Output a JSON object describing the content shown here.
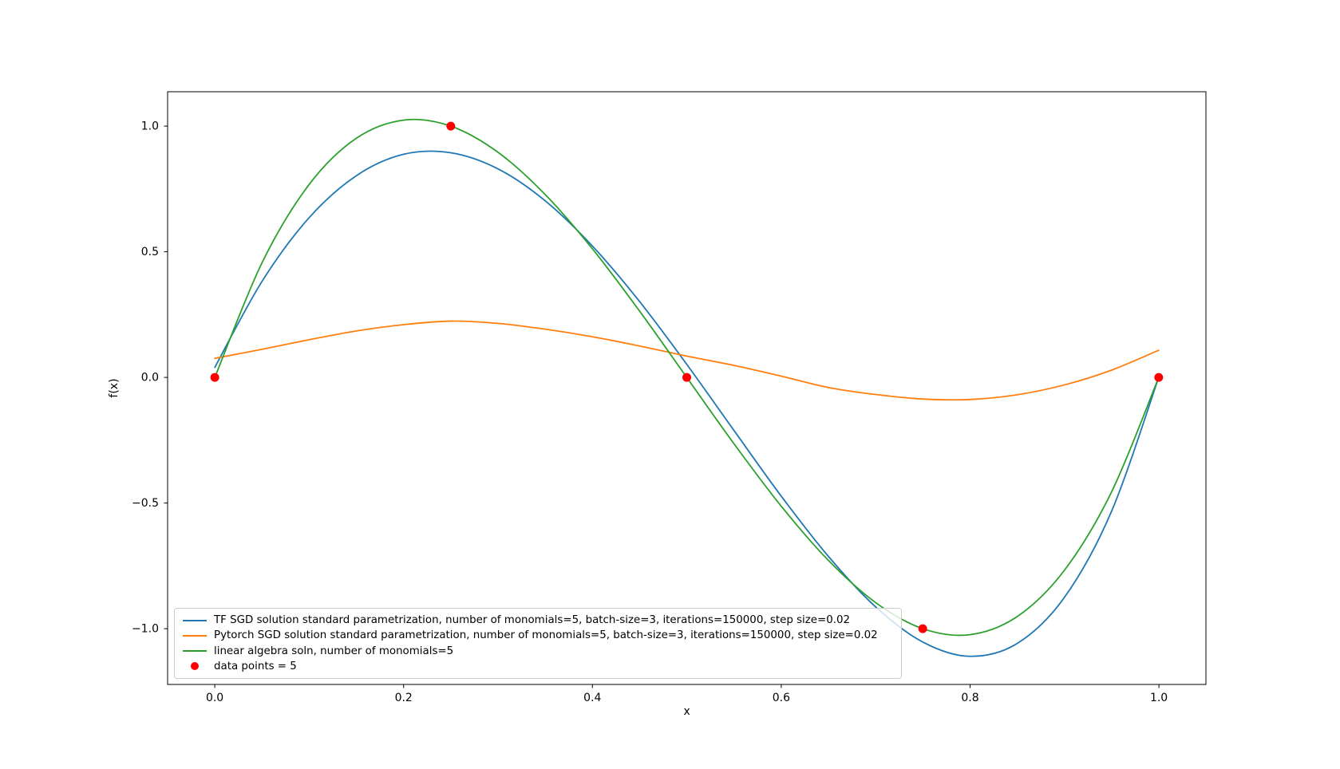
{
  "chart_data": {
    "type": "line",
    "title": "",
    "xlabel": "x",
    "ylabel": "f(x)",
    "xlim": [
      -0.05,
      1.05
    ],
    "ylim": [
      -1.222,
      1.137
    ],
    "grid": false,
    "legend_position": "lower left",
    "xticks": {
      "values": [
        0.0,
        0.2,
        0.4,
        0.6,
        0.8,
        1.0
      ],
      "labels": [
        "0.0",
        "0.2",
        "0.4",
        "0.6",
        "0.8",
        "1.0"
      ]
    },
    "yticks": {
      "values": [
        1.0,
        0.5,
        0.0,
        -0.5,
        -1.0
      ],
      "labels": [
        "1.0",
        "0.5",
        "0.0",
        "−0.5",
        "−1.0"
      ]
    },
    "series": [
      {
        "id": "tf-sgd",
        "name": "TF SGD solution standard parametrization, number of monomials=5, batch-size=3, iterations=150000, step size=0.02",
        "color": "#1f77b4",
        "type": "line",
        "x": [
          0,
          0.05,
          0.1,
          0.15,
          0.2,
          0.25,
          0.3,
          0.35,
          0.4,
          0.45,
          0.5,
          0.55,
          0.6,
          0.65,
          0.7,
          0.75,
          0.8,
          0.85,
          0.9,
          0.95,
          1.0
        ],
        "y": [
          0.04,
          0.382,
          0.636,
          0.803,
          0.888,
          0.894,
          0.83,
          0.703,
          0.523,
          0.302,
          0.052,
          -0.211,
          -0.472,
          -0.712,
          -0.913,
          -1.053,
          -1.11,
          -1.059,
          -0.876,
          -0.533,
          0.0
        ]
      },
      {
        "id": "pytorch-sgd",
        "name": "Pytorch SGD solution standard parametrization, number of monomials=5, batch-size=3, iterations=150000, step size=0.02",
        "color": "#ff7f0e",
        "type": "line",
        "x": [
          0,
          0.05,
          0.1,
          0.15,
          0.2,
          0.25,
          0.3,
          0.35,
          0.4,
          0.45,
          0.5,
          0.55,
          0.6,
          0.65,
          0.7,
          0.75,
          0.8,
          0.85,
          0.9,
          0.95,
          1.0
        ],
        "y": [
          0.076,
          0.112,
          0.15,
          0.185,
          0.21,
          0.224,
          0.215,
          0.192,
          0.162,
          0.125,
          0.085,
          0.048,
          0.005,
          -0.04,
          -0.068,
          -0.086,
          -0.088,
          -0.069,
          -0.03,
          0.029,
          0.108
        ]
      },
      {
        "id": "linear-algebra",
        "name": "linear algebra soln, number of monomials=5",
        "color": "#2ca02c",
        "type": "line",
        "x": [
          0,
          0.05,
          0.1,
          0.15,
          0.2,
          0.25,
          0.3,
          0.35,
          0.4,
          0.45,
          0.5,
          0.55,
          0.6,
          0.65,
          0.7,
          0.75,
          0.8,
          0.85,
          0.9,
          0.95,
          1.0
        ],
        "y": [
          0.0,
          0.456,
          0.768,
          0.952,
          1.024,
          1.0,
          0.896,
          0.728,
          0.512,
          0.264,
          0.0,
          -0.264,
          -0.512,
          -0.728,
          -0.896,
          -1.0,
          -1.024,
          -0.952,
          -0.768,
          -0.456,
          0.0
        ]
      },
      {
        "id": "data-points",
        "name": "data points = 5",
        "color": "#ff0000",
        "type": "scatter",
        "x": [
          0.0,
          0.25,
          0.5,
          0.75,
          1.0
        ],
        "y": [
          0.0,
          1.0,
          0.0,
          -1.0,
          0.0
        ]
      }
    ]
  }
}
